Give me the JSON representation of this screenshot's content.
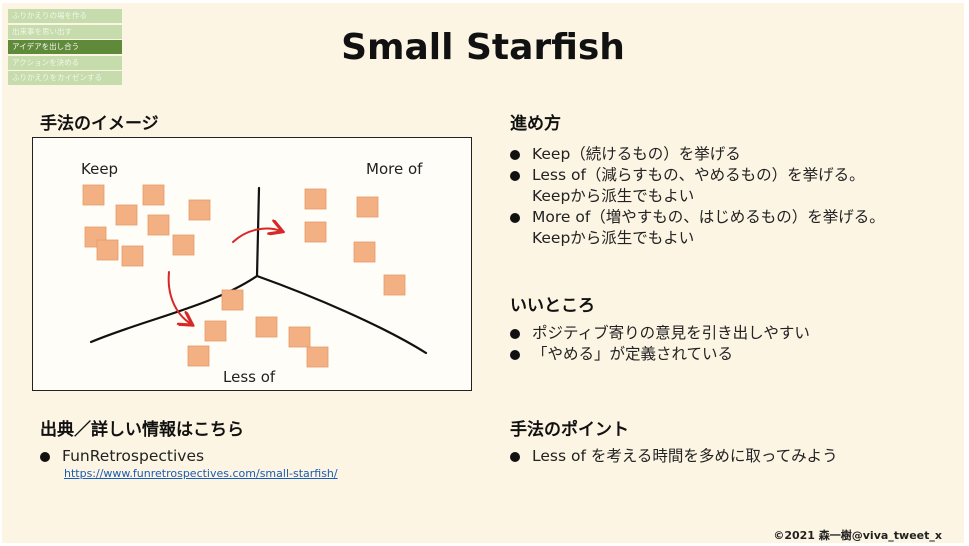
{
  "nav": {
    "items": [
      {
        "label": "ふりかえりの場を作る",
        "state": "normal"
      },
      {
        "label": "出来事を思い出す",
        "state": "normal"
      },
      {
        "label": "アイデアを出し合う",
        "state": "active"
      },
      {
        "label": "アクションを決める",
        "state": "normal"
      },
      {
        "label": "ふりかえりをカイゼンする",
        "state": "normal"
      }
    ]
  },
  "slide": {
    "title": "Small Starfish",
    "image_section": {
      "heading": "手法のイメージ",
      "labels": {
        "keep": "Keep",
        "more_of": "More of",
        "less_of": "Less of"
      }
    },
    "howto": {
      "heading": "進め方",
      "items": [
        {
          "line1": "Keep（続けるもの）を挙げる",
          "line2": ""
        },
        {
          "line1": "Less of（減らすもの、やめるもの）を挙げる。",
          "line2": "Keepから派生でもよい"
        },
        {
          "line1": "More of（増やすもの、はじめるもの）を挙げる。",
          "line2": "Keepから派生でもよい"
        }
      ]
    },
    "good": {
      "heading": "いいところ",
      "items": [
        "ポジティブ寄りの意見を引き出しやすい",
        "「やめる」が定義されている"
      ]
    },
    "source": {
      "heading": "出典／詳しい情報はこちら",
      "name": "FunRetrospectives",
      "url": "https://www.funretrospectives.com/small-starfish/"
    },
    "point": {
      "heading": "手法のポイント",
      "items": [
        "Less of を考える時間を多めに取ってみよう"
      ]
    },
    "credit": "©2021 森一樹@viva_tweet_x"
  },
  "colors": {
    "nav_inactive": "#c6dcac",
    "nav_active": "#5f8a3a",
    "sticky": "#f3b083",
    "arrow": "#d62828",
    "slide_bg": "#fdf5e4",
    "link": "#1a5bb5"
  }
}
